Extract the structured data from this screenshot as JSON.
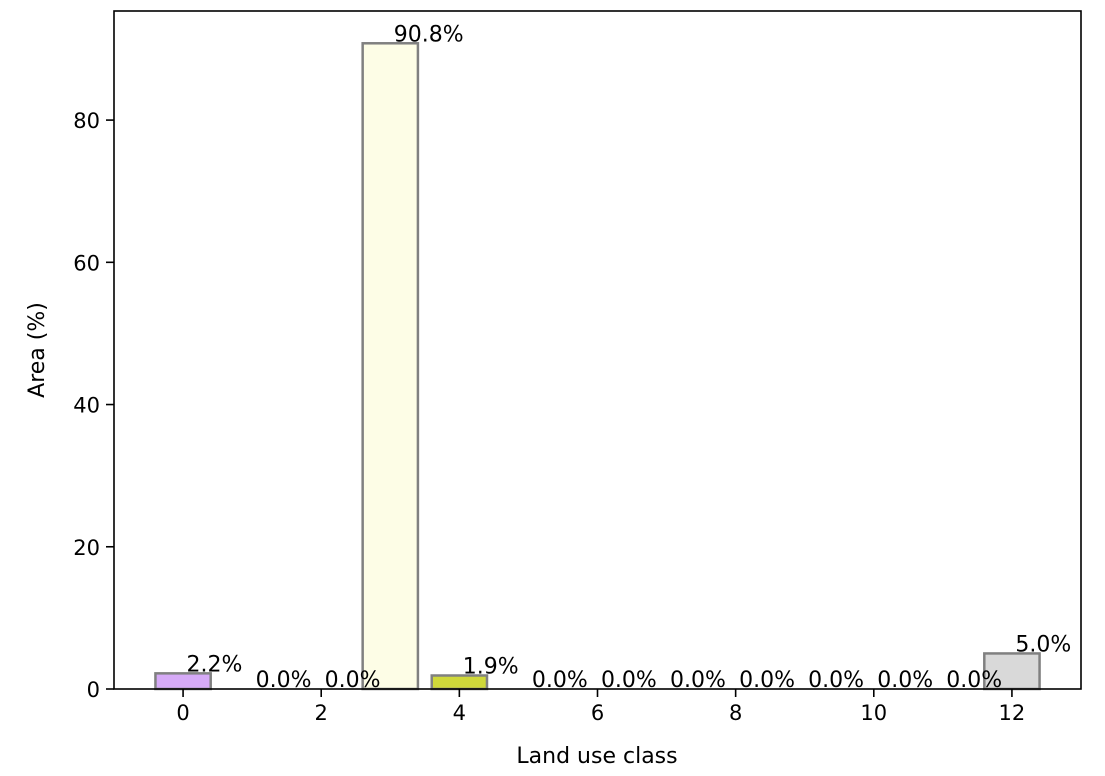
{
  "chart_data": {
    "type": "bar",
    "title": "",
    "xlabel": "Land use class",
    "ylabel": "Area (%)",
    "x": [
      0,
      1,
      2,
      3,
      4,
      5,
      6,
      7,
      8,
      9,
      10,
      11,
      12
    ],
    "values": [
      2.2,
      0.0,
      0.0,
      90.8,
      1.9,
      0.0,
      0.0,
      0.0,
      0.0,
      0.0,
      0.0,
      0.0,
      5.0
    ],
    "value_labels": [
      "2.2%",
      "0.0%",
      "0.0%",
      "90.8%",
      "1.9%",
      "0.0%",
      "0.0%",
      "0.0%",
      "0.0%",
      "0.0%",
      "0.0%",
      "0.0%",
      "5.0%"
    ],
    "bar_colors": [
      "#d6aaf7",
      "#ffffff",
      "#ffffff",
      "#fdfde6",
      "#cfd83a",
      "#ffffff",
      "#ffffff",
      "#ffffff",
      "#ffffff",
      "#ffffff",
      "#ffffff",
      "#ffffff",
      "#d9d9d9"
    ],
    "bar_edge_color": "#808080",
    "xticks": [
      0,
      2,
      4,
      6,
      8,
      10,
      12
    ],
    "xtick_labels": [
      "0",
      "2",
      "4",
      "6",
      "8",
      "10",
      "12"
    ],
    "yticks": [
      0,
      20,
      40,
      60,
      80
    ],
    "ytick_labels": [
      "0",
      "20",
      "40",
      "60",
      "80"
    ],
    "xlim": [
      -1.0,
      13.0
    ],
    "ylim": [
      0,
      95.34
    ],
    "grid": false
  }
}
